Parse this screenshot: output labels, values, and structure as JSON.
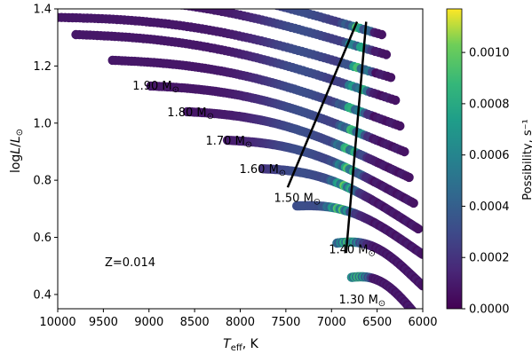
{
  "chart_data": {
    "type": "scatter",
    "xlabel_main": "T",
    "xlabel_sub": "eff",
    "xlabel_unit": ", K",
    "ylabel_prefix": "log",
    "ylabel_L": "L",
    "ylabel_slash": "/",
    "ylabel_Lsun": "L",
    "ylabel_sun": "⊙",
    "x_inverted": true,
    "xlim": [
      10000,
      6000
    ],
    "ylim": [
      0.35,
      1.4
    ],
    "xticks": [
      10000,
      9500,
      9000,
      8500,
      8000,
      7500,
      7000,
      6500,
      6000
    ],
    "xtick_labels": [
      "10000",
      "9500",
      "9000",
      "8500",
      "8000",
      "7500",
      "7000",
      "6500",
      "6000"
    ],
    "yticks": [
      0.4,
      0.6,
      0.8,
      1.0,
      1.2,
      1.4
    ],
    "ytick_labels": [
      "0.4",
      "0.6",
      "0.8",
      "1.0",
      "1.2",
      "1.4"
    ],
    "annotation": "Z=0.014",
    "colorbar": {
      "label": "Possibility, s⁻¹",
      "range": [
        0.0,
        0.00117
      ],
      "ticks": [
        0.0,
        0.0002,
        0.0004,
        0.0006,
        0.0008,
        0.001
      ],
      "tick_labels": [
        "0.0000",
        "0.0002",
        "0.0004",
        "0.0006",
        "0.0008",
        "0.0010"
      ],
      "colormap": "viridis"
    },
    "tracks": [
      {
        "mass_label": "1.30 M",
        "label_x": 6920,
        "label_y": 0.368,
        "start": [
          6780,
          0.46
        ],
        "end": [
          6000,
          0.3
        ],
        "peak": 6700
      },
      {
        "mass_label": "1.40 M",
        "label_x": 7030,
        "label_y": 0.544,
        "start": [
          6940,
          0.58
        ],
        "end": [
          6000,
          0.43
        ],
        "peak": 6800
      },
      {
        "mass_label": "1.50 M",
        "label_x": 7630,
        "label_y": 0.724,
        "start": [
          7380,
          0.71
        ],
        "end": [
          6000,
          0.54
        ],
        "peak": 6900
      },
      {
        "mass_label": "1.60 M",
        "label_x": 8010,
        "label_y": 0.826,
        "start": [
          7750,
          0.84
        ],
        "end": [
          6050,
          0.63
        ],
        "peak": 6850
      },
      {
        "mass_label": "1.70 M",
        "label_x": 8380,
        "label_y": 0.924,
        "start": [
          8140,
          0.94
        ],
        "end": [
          6100,
          0.72
        ],
        "peak": 6800
      },
      {
        "mass_label": "1.80 M",
        "label_x": 8800,
        "label_y": 1.024,
        "start": [
          8580,
          1.04
        ],
        "end": [
          6150,
          0.81
        ],
        "peak": 6800
      },
      {
        "mass_label": "1.90 M",
        "label_x": 9180,
        "label_y": 1.117,
        "start": [
          8980,
          1.13
        ],
        "end": [
          6200,
          0.9
        ],
        "peak": 6750
      },
      {
        "start": [
          9400,
          1.22
        ],
        "end": [
          6250,
          0.99
        ],
        "peak": 6750
      },
      {
        "start": [
          9800,
          1.31
        ],
        "end": [
          6300,
          1.08
        ],
        "peak": 6700
      },
      {
        "start": [
          10000,
          1.37
        ],
        "end": [
          6350,
          1.16
        ],
        "peak": 6700
      },
      {
        "start": [
          10000,
          1.44
        ],
        "end": [
          6400,
          1.24
        ],
        "peak": 6700
      },
      {
        "start": [
          10000,
          1.5
        ],
        "end": [
          6450,
          1.31
        ],
        "peak": 6700
      }
    ],
    "instability_strip": {
      "blue_edge": [
        [
          7480,
          0.775
        ],
        [
          6720,
          1.355
        ]
      ],
      "red_edge": [
        [
          6840,
          0.545
        ],
        [
          6620,
          1.355
        ]
      ]
    }
  }
}
